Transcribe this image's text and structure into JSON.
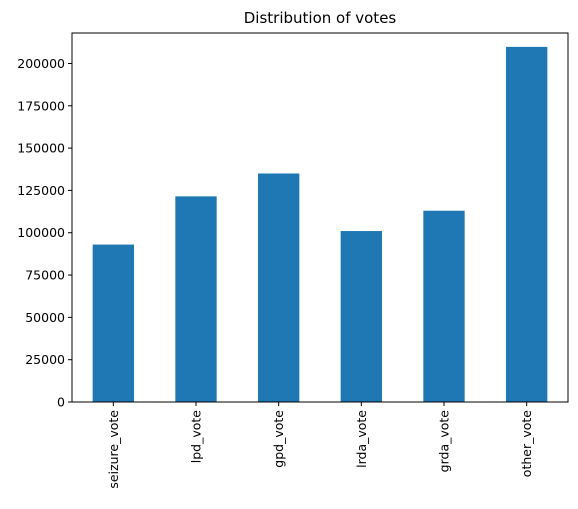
{
  "chart_data": {
    "type": "bar",
    "title": "Distribution of votes",
    "categories": [
      "seizure_vote",
      "lpd_vote",
      "gpd_vote",
      "lrda_vote",
      "grda_vote",
      "other_vote"
    ],
    "values": [
      93000,
      121500,
      135000,
      101000,
      113000,
      209800
    ],
    "xlabel": "",
    "ylabel": "",
    "ylim": [
      0,
      218000
    ],
    "yticks": [
      0,
      25000,
      50000,
      75000,
      100000,
      125000,
      150000,
      175000,
      200000
    ],
    "bar_color": "#1f77b4",
    "grid": false,
    "legend": null
  }
}
